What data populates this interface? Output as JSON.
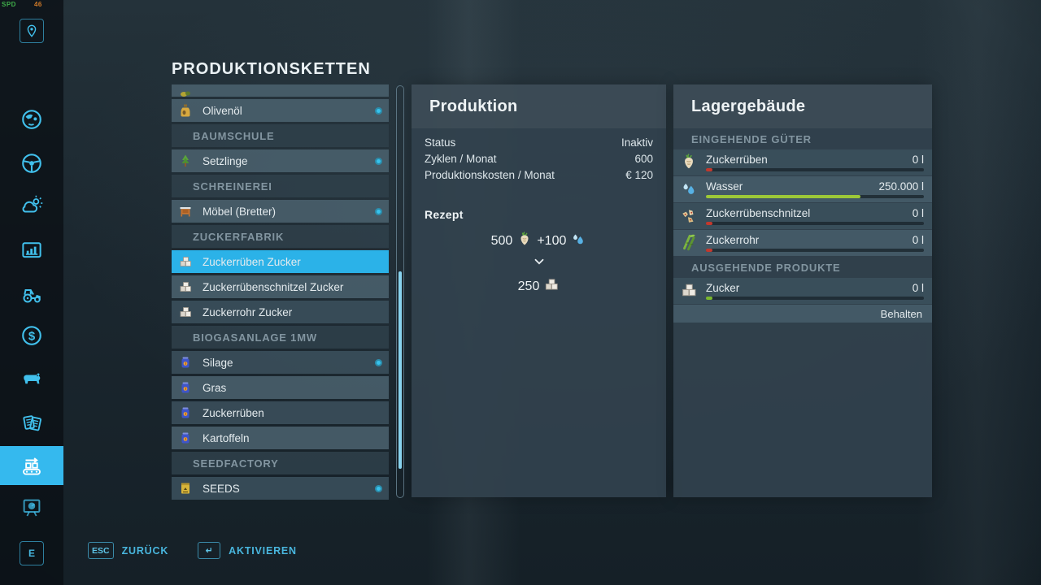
{
  "hud": {
    "spd_label": "SPD",
    "spd_value": "46"
  },
  "header": {
    "title": "PRODUKTIONSKETTEN"
  },
  "sidebar": {
    "items": [
      {
        "name": "map-pin-button",
        "icon": "map-pin-icon",
        "boxed": true
      },
      {
        "name": "sidebar-item-map",
        "icon": "globe-icon"
      },
      {
        "name": "sidebar-item-vehicles",
        "icon": "steering-wheel-icon"
      },
      {
        "name": "sidebar-item-weather",
        "icon": "weather-icon"
      },
      {
        "name": "sidebar-item-statistics",
        "icon": "bar-chart-icon"
      },
      {
        "name": "sidebar-item-garage",
        "icon": "tractor-icon"
      },
      {
        "name": "sidebar-item-finances",
        "icon": "dollar-icon"
      },
      {
        "name": "sidebar-item-animals",
        "icon": "cow-icon"
      },
      {
        "name": "sidebar-item-contracts",
        "icon": "documents-icon"
      },
      {
        "name": "sidebar-item-production-chains",
        "icon": "conveyor-icon",
        "active": true
      },
      {
        "name": "sidebar-item-ai-workers",
        "icon": "presentation-icon"
      },
      {
        "name": "key-e-button",
        "icon": "e-key-icon",
        "boxed": true,
        "key_label": "E"
      }
    ]
  },
  "list": {
    "items": [
      {
        "kind": "partial",
        "label": "",
        "icon": "olives-icon",
        "shade": "light"
      },
      {
        "kind": "item",
        "label": "Olivenöl",
        "icon": "oil-bottle-icon",
        "dot": true,
        "shade": "light"
      },
      {
        "kind": "header",
        "label": "BAUMSCHULE"
      },
      {
        "kind": "item",
        "label": "Setzlinge",
        "icon": "sapling-icon",
        "dot": true,
        "shade": "light"
      },
      {
        "kind": "header",
        "label": "SCHREINEREI"
      },
      {
        "kind": "item",
        "label": "Möbel (Bretter)",
        "icon": "furniture-icon",
        "dot": true,
        "shade": "light"
      },
      {
        "kind": "header",
        "label": "ZUCKERFABRIK"
      },
      {
        "kind": "item",
        "label": "Zuckerrüben Zucker",
        "icon": "sugar-icon",
        "dot": false,
        "shade": "light",
        "selected": true
      },
      {
        "kind": "item",
        "label": "Zuckerrübenschnitzel Zucker",
        "icon": "sugar-icon",
        "dot": false,
        "shade": "light"
      },
      {
        "kind": "item",
        "label": "Zuckerrohr Zucker",
        "icon": "sugar-icon",
        "dot": false,
        "shade": "dark"
      },
      {
        "kind": "header",
        "label": "BIOGASANLAGE 1MW"
      },
      {
        "kind": "item",
        "label": "Silage",
        "icon": "silage-jar-icon",
        "dot": true,
        "shade": "dark"
      },
      {
        "kind": "item",
        "label": "Gras",
        "icon": "silage-jar-icon",
        "dot": false,
        "shade": "light"
      },
      {
        "kind": "item",
        "label": "Zuckerrüben",
        "icon": "silage-jar-icon",
        "dot": false,
        "shade": "dark"
      },
      {
        "kind": "item",
        "label": "Kartoffeln",
        "icon": "silage-jar-icon",
        "dot": false,
        "shade": "light"
      },
      {
        "kind": "header",
        "label": "SEEDFACTORY"
      },
      {
        "kind": "item",
        "label": "SEEDS",
        "icon": "seeds-bag-icon",
        "dot": true,
        "shade": "dark"
      }
    ]
  },
  "scrollbar": {
    "thumb_top_pct": 45,
    "thumb_height_pct": 48
  },
  "production": {
    "title": "Produktion",
    "stats": [
      {
        "label": "Status",
        "value": "Inaktiv"
      },
      {
        "label": "Zyklen / Monat",
        "value": "600"
      },
      {
        "label": "Produktionskosten / Monat",
        "value": "€ 120"
      }
    ],
    "recipe": {
      "heading": "Rezept",
      "inputs": [
        {
          "amount": "500",
          "icon": "sugar-beet-icon"
        },
        {
          "amount": "+100",
          "icon": "water-icon"
        }
      ],
      "output": {
        "amount": "250",
        "icon": "sugar-icon"
      }
    }
  },
  "storage": {
    "title": "Lagergebäude",
    "sections": [
      {
        "heading": "EINGEHENDE GÜTER",
        "rows": [
          {
            "name": "Zuckerrüben",
            "value": "0 l",
            "icon": "sugar-beet-icon",
            "fill_pct": 3,
            "fill_color": "#c2392e",
            "shade": "dark"
          },
          {
            "name": "Wasser",
            "value": "250.000 l",
            "icon": "water-icon",
            "fill_pct": 71,
            "fill_color": "#9dc838",
            "shade": "light"
          },
          {
            "name": "Zuckerrübenschnitzel",
            "value": "0 l",
            "icon": "beet-chips-icon",
            "fill_pct": 3,
            "fill_color": "#c2392e",
            "shade": "dark"
          },
          {
            "name": "Zuckerrohr",
            "value": "0 l",
            "icon": "sugarcane-icon",
            "fill_pct": 3,
            "fill_color": "#c2392e",
            "shade": "light"
          }
        ]
      },
      {
        "heading": "AUSGEHENDE PRODUKTE",
        "rows": [
          {
            "name": "Zucker",
            "value": "0 l",
            "icon": "sugar-icon",
            "fill_pct": 3,
            "fill_color": "#7ab82e",
            "shade": "dark",
            "footer": "Behalten"
          }
        ]
      }
    ]
  },
  "footer": {
    "back": {
      "key": "ESC",
      "label": "ZURÜCK"
    },
    "activate": {
      "key": "↵",
      "label": "AKTIVIEREN"
    }
  },
  "colors": {
    "accent": "#2bb2e8",
    "indicator_dot": "#38c2ec",
    "bar_green": "#9dc838",
    "bar_red": "#c2392e",
    "bar_green_dark": "#7ab82e",
    "hud_green": "#3fae4a",
    "hud_orange": "#d07a28"
  }
}
